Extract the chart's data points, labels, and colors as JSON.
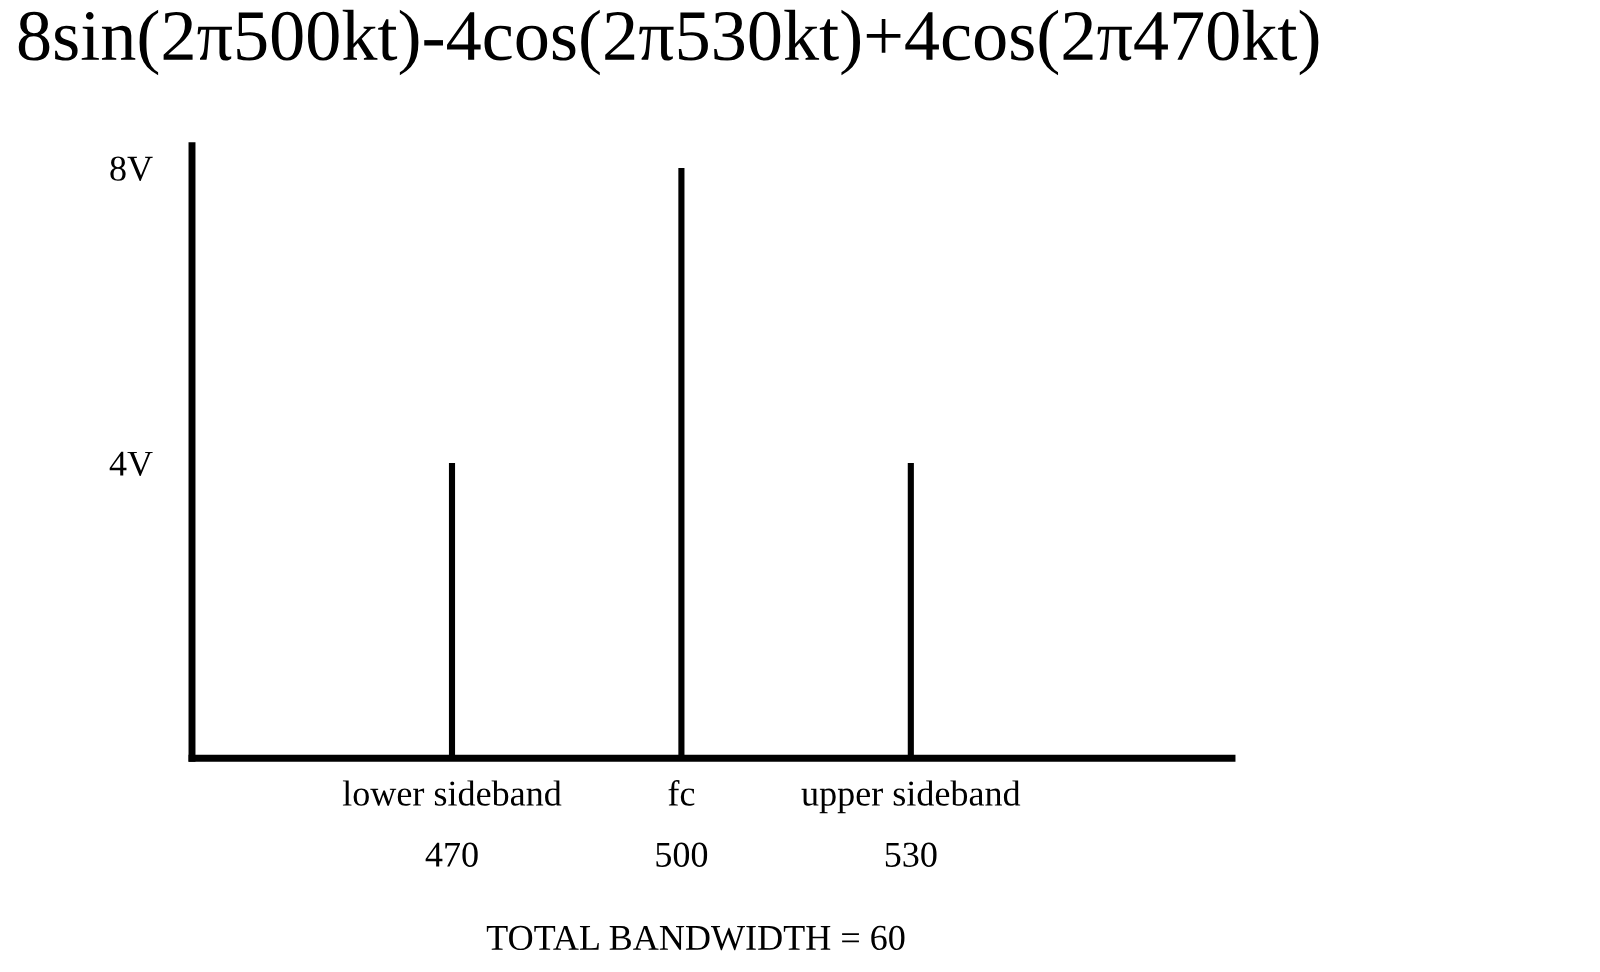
{
  "chart_data": {
    "type": "bar",
    "title": "8sin(2π500kt)-4cos(2π530kt)+4cos(2π470kt)",
    "x": [
      470,
      500,
      530
    ],
    "values": [
      4,
      8,
      4
    ],
    "color": "#000000",
    "xlim": [
      436,
      572
    ],
    "ylim": [
      0,
      8.3
    ],
    "xticks": [
      470,
      500,
      530
    ],
    "yticks": [
      {
        "value": 4,
        "label": "4V"
      },
      {
        "value": 8,
        "label": "8V"
      }
    ],
    "grid": false,
    "legend": false,
    "annotations": [
      "lower sideband",
      "fc",
      "upper sideband",
      "TOTAL BANDWIDTH = 60"
    ]
  }
}
